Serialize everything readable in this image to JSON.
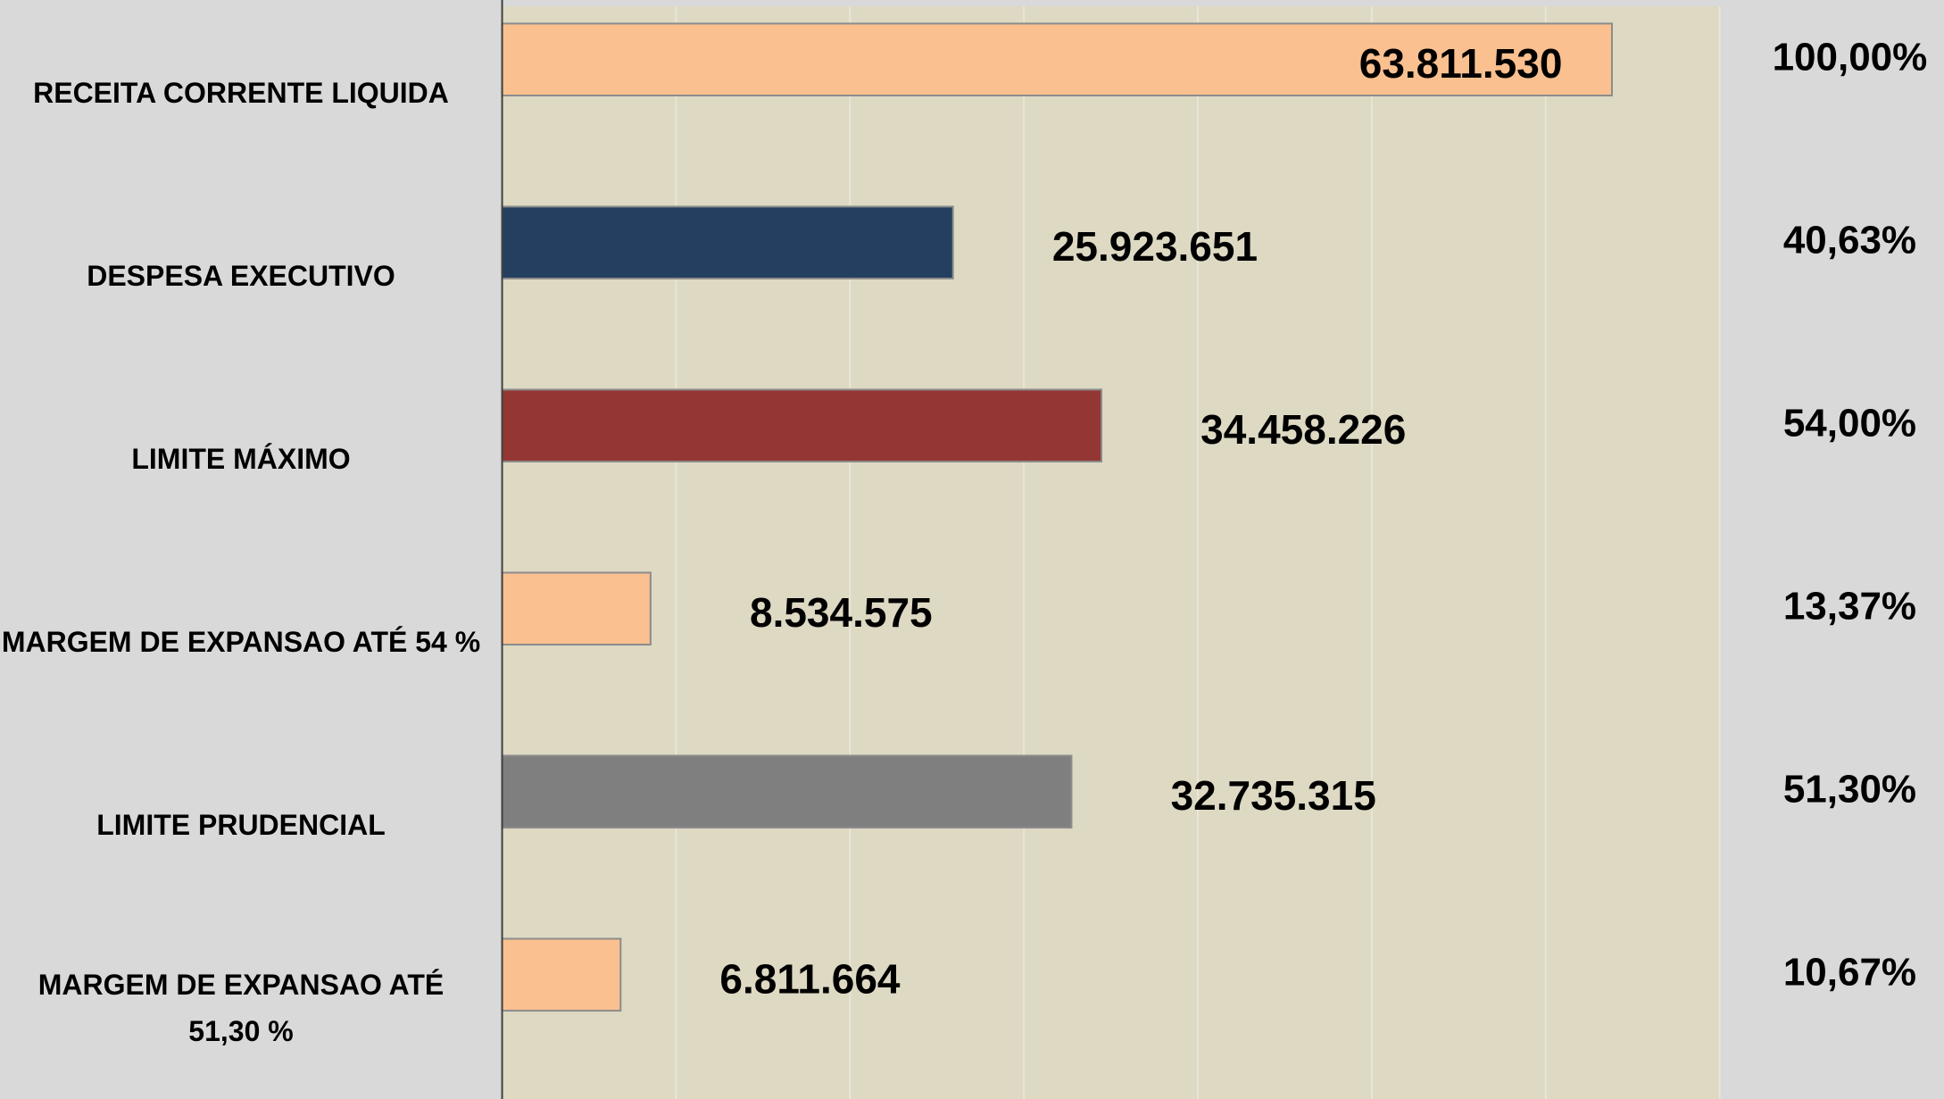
{
  "chart_data": {
    "type": "bar",
    "orientation": "horizontal",
    "categories": [
      "RECEITA CORRENTE LIQUIDA",
      "DESPESA EXECUTIVO",
      "LIMITE MÁXIMO",
      "MARGEM DE EXPANSAO ATÉ 54 %",
      "LIMITE PRUDENCIAL",
      "MARGEM DE EXPANSAO ATÉ 51,30 %"
    ],
    "values": [
      63811530,
      25923651,
      34458226,
      8534575,
      32735315,
      6811664
    ],
    "value_labels": [
      "63.811.530",
      "25.923.651",
      "34.458.226",
      "8.534.575",
      "32.735.315",
      "6.811.664"
    ],
    "colors": [
      "#fac090",
      "#243f60",
      "#943634",
      "#fac090",
      "#7f7f7f",
      "#fac090"
    ],
    "percentages": {
      "values": [
        100,
        40.63,
        54,
        13.37,
        51.3,
        10.67
      ],
      "value_labels": [
        "100,00%",
        "40,63%",
        "54,00%",
        "13,37%",
        "51,30%",
        "10,67%"
      ]
    },
    "xlim": [
      0,
      70000000
    ],
    "xticks": [
      0,
      10000000,
      20000000,
      30000000,
      40000000,
      50000000,
      60000000,
      70000000
    ],
    "grid": true
  }
}
